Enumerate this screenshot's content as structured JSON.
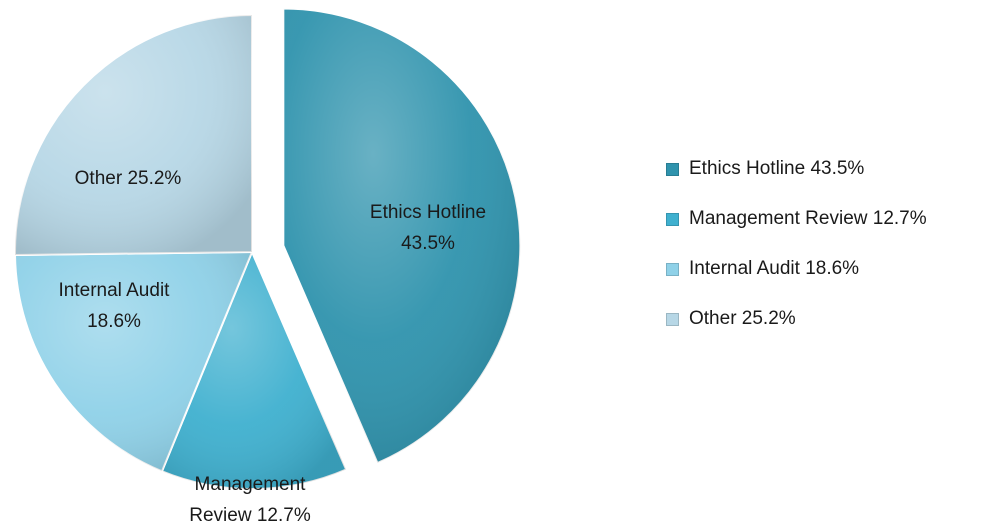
{
  "chart_data": {
    "type": "pie",
    "exploded": "Ethics Hotline",
    "slices": [
      {
        "label": "Ethics Hotline",
        "value": 43.5,
        "display": "43.5%",
        "color": "#2f93ad"
      },
      {
        "label": "Management Review",
        "value": 12.7,
        "display": "12.7%",
        "color": "#3fb0cf"
      },
      {
        "label": "Internal Audit",
        "value": 18.6,
        "display": "18.6%",
        "color": "#8fd1e8"
      },
      {
        "label": "Other",
        "value": 25.2,
        "display": "25.2%",
        "color": "#b7d7e6"
      }
    ],
    "data_labels": [
      {
        "lines": [
          "Ethics Hotline",
          "43.5%"
        ]
      },
      {
        "lines": [
          "Management",
          "Review 12.7%"
        ]
      },
      {
        "lines": [
          "Internal Audit",
          "18.6%"
        ]
      },
      {
        "lines": [
          "Other 25.2%"
        ]
      }
    ],
    "legend": {
      "placement": "right",
      "entries": [
        "Ethics Hotline 43.5%",
        "Management Review 12.7%",
        "Internal Audit 18.6%",
        "Other 25.2%"
      ]
    }
  }
}
